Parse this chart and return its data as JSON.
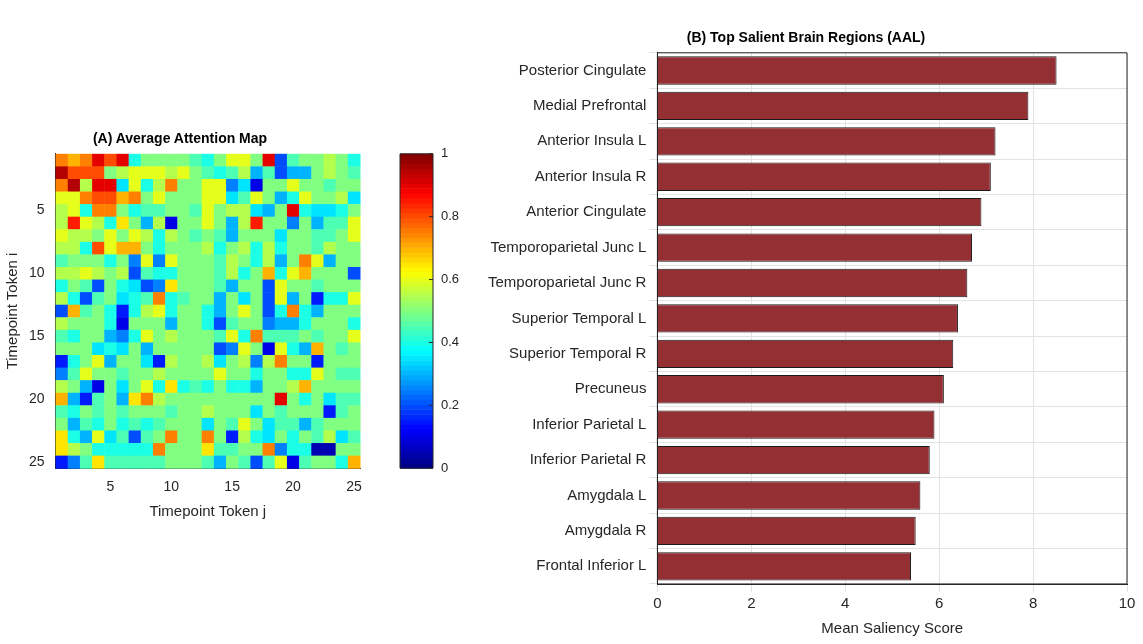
{
  "chart_data": [
    {
      "type": "heatmap",
      "title": "(A) Average Attention Map",
      "xlabel": "Timepoint Token j",
      "ylabel": "Timepoint Token i",
      "categories": [
        null,
        null,
        null,
        null,
        "5",
        null,
        null,
        null,
        null,
        "10",
        null,
        null,
        null,
        null,
        "15",
        null,
        null,
        null,
        null,
        "20",
        null,
        null,
        null,
        null,
        "25"
      ],
      "y_categories": [
        null,
        null,
        null,
        null,
        "5",
        null,
        null,
        null,
        null,
        "10",
        null,
        null,
        null,
        null,
        "15",
        null,
        null,
        null,
        null,
        "20",
        null,
        null,
        null,
        null,
        "25"
      ],
      "clim": [
        0,
        1
      ],
      "cticks": [
        0,
        0.2,
        0.4,
        0.6,
        0.8,
        1
      ],
      "cells": [
        [
          0.75,
          0.7,
          0.75,
          0.9,
          0.8,
          0.9,
          0.4,
          0.5,
          0.5,
          0.5,
          0.5,
          0.45,
          0.4,
          0.5,
          0.6,
          0.6,
          0.5,
          0.9,
          0.2,
          0.45,
          0.5,
          0.5,
          0.55,
          0.5,
          0.4
        ],
        [
          0.95,
          0.8,
          0.8,
          0.8,
          0.5,
          0.55,
          0.6,
          0.6,
          0.6,
          0.55,
          0.6,
          0.5,
          0.45,
          0.4,
          0.45,
          0.55,
          0.3,
          0.45,
          0.2,
          0.3,
          0.3,
          0.5,
          0.55,
          0.5,
          0.45
        ],
        [
          0.75,
          0.95,
          0.55,
          0.9,
          0.9,
          0.35,
          0.6,
          0.4,
          0.55,
          0.75,
          0.5,
          0.5,
          0.6,
          0.6,
          0.25,
          0.35,
          0.1,
          0.5,
          0.5,
          0.6,
          0.5,
          0.5,
          0.45,
          0.5,
          0.5
        ],
        [
          0.6,
          0.6,
          0.75,
          0.8,
          0.8,
          0.7,
          0.75,
          0.5,
          0.6,
          0.5,
          0.5,
          0.5,
          0.6,
          0.6,
          0.35,
          0.45,
          0.6,
          0.5,
          0.3,
          0.4,
          0.6,
          0.5,
          0.5,
          0.55,
          0.35
        ],
        [
          0.55,
          0.6,
          0.4,
          0.75,
          0.75,
          0.5,
          0.4,
          0.45,
          0.45,
          0.5,
          0.5,
          0.45,
          0.6,
          0.5,
          0.55,
          0.55,
          0.35,
          0.3,
          0.5,
          0.9,
          0.4,
          0.35,
          0.35,
          0.4,
          0.5
        ],
        [
          0.55,
          0.85,
          0.6,
          0.55,
          0.4,
          0.65,
          0.5,
          0.3,
          0.55,
          0.1,
          0.5,
          0.5,
          0.6,
          0.5,
          0.3,
          0.55,
          0.85,
          0.5,
          0.5,
          0.25,
          0.5,
          0.3,
          0.45,
          0.45,
          0.6
        ],
        [
          0.6,
          0.55,
          0.55,
          0.5,
          0.6,
          0.5,
          0.6,
          0.55,
          0.4,
          0.55,
          0.5,
          0.45,
          0.5,
          0.45,
          0.3,
          0.5,
          0.5,
          0.5,
          0.35,
          0.5,
          0.5,
          0.45,
          0.45,
          0.5,
          0.6
        ],
        [
          0.55,
          0.55,
          0.4,
          0.8,
          0.6,
          0.7,
          0.7,
          0.5,
          0.4,
          0.5,
          0.5,
          0.5,
          0.55,
          0.4,
          0.5,
          0.55,
          0.4,
          0.55,
          0.4,
          0.5,
          0.5,
          0.45,
          0.55,
          0.5,
          0.5
        ],
        [
          0.45,
          0.5,
          0.5,
          0.5,
          0.4,
          0.5,
          0.25,
          0.6,
          0.25,
          0.6,
          0.5,
          0.5,
          0.5,
          0.45,
          0.55,
          0.5,
          0.4,
          0.55,
          0.3,
          0.5,
          0.75,
          0.6,
          0.3,
          0.5,
          0.5
        ],
        [
          0.55,
          0.55,
          0.6,
          0.55,
          0.5,
          0.55,
          0.2,
          0.45,
          0.4,
          0.4,
          0.5,
          0.5,
          0.5,
          0.45,
          0.55,
          0.4,
          0.5,
          0.7,
          0.4,
          0.6,
          0.7,
          0.5,
          0.5,
          0.5,
          0.2
        ],
        [
          0.4,
          0.5,
          0.45,
          0.2,
          0.5,
          0.4,
          0.35,
          0.2,
          0.25,
          0.65,
          0.5,
          0.5,
          0.5,
          0.45,
          0.3,
          0.5,
          0.5,
          0.2,
          0.6,
          0.5,
          0.5,
          0.45,
          0.5,
          0.5,
          0.5
        ],
        [
          0.55,
          0.4,
          0.2,
          0.45,
          0.5,
          0.35,
          0.4,
          0.45,
          0.75,
          0.4,
          0.45,
          0.5,
          0.5,
          0.3,
          0.5,
          0.35,
          0.5,
          0.2,
          0.6,
          0.3,
          0.5,
          0.15,
          0.4,
          0.4,
          0.6
        ],
        [
          0.2,
          0.7,
          0.45,
          0.5,
          0.4,
          0.15,
          0.4,
          0.55,
          0.6,
          0.4,
          0.5,
          0.5,
          0.4,
          0.3,
          0.5,
          0.6,
          0.5,
          0.2,
          0.4,
          0.75,
          0.4,
          0.3,
          0.5,
          0.5,
          0.5
        ],
        [
          0.55,
          0.5,
          0.5,
          0.5,
          0.4,
          0.1,
          0.5,
          0.5,
          0.5,
          0.3,
          0.5,
          0.5,
          0.4,
          0.2,
          0.45,
          0.5,
          0.5,
          0.25,
          0.3,
          0.3,
          0.4,
          0.5,
          0.5,
          0.5,
          0.4
        ],
        [
          0.45,
          0.4,
          0.5,
          0.5,
          0.3,
          0.25,
          0.4,
          0.6,
          0.5,
          0.55,
          0.5,
          0.5,
          0.5,
          0.45,
          0.6,
          0.4,
          0.75,
          0.45,
          0.45,
          0.45,
          0.5,
          0.45,
          0.5,
          0.5,
          0.6
        ],
        [
          0.5,
          0.5,
          0.5,
          0.35,
          0.4,
          0.35,
          0.5,
          0.3,
          0.5,
          0.5,
          0.5,
          0.5,
          0.5,
          0.2,
          0.25,
          0.6,
          0.5,
          0.1,
          0.6,
          0.4,
          0.3,
          0.7,
          0.5,
          0.45,
          0.5
        ],
        [
          0.15,
          0.4,
          0.5,
          0.6,
          0.3,
          0.5,
          0.5,
          0.35,
          0.15,
          0.55,
          0.5,
          0.5,
          0.55,
          0.35,
          0.5,
          0.55,
          0.25,
          0.55,
          0.75,
          0.5,
          0.5,
          0.15,
          0.5,
          0.5,
          0.5
        ],
        [
          0.25,
          0.45,
          0.6,
          0.5,
          0.5,
          0.45,
          0.5,
          0.5,
          0.55,
          0.5,
          0.5,
          0.5,
          0.5,
          0.6,
          0.5,
          0.5,
          0.4,
          0.5,
          0.5,
          0.4,
          0.4,
          0.6,
          0.5,
          0.45,
          0.45
        ],
        [
          0.55,
          0.5,
          0.3,
          0.1,
          0.5,
          0.35,
          0.5,
          0.6,
          0.4,
          0.65,
          0.4,
          0.45,
          0.4,
          0.5,
          0.4,
          0.4,
          0.3,
          0.5,
          0.5,
          0.55,
          0.7,
          0.5,
          0.5,
          0.5,
          0.5
        ],
        [
          0.7,
          0.3,
          0.15,
          0.45,
          0.5,
          0.3,
          0.65,
          0.75,
          0.55,
          0.5,
          0.5,
          0.5,
          0.5,
          0.5,
          0.5,
          0.5,
          0.5,
          0.5,
          0.9,
          0.5,
          0.4,
          0.5,
          0.35,
          0.45,
          0.45
        ],
        [
          0.45,
          0.4,
          0.5,
          0.45,
          0.5,
          0.45,
          0.5,
          0.5,
          0.5,
          0.45,
          0.5,
          0.5,
          0.55,
          0.5,
          0.5,
          0.5,
          0.35,
          0.5,
          0.45,
          0.5,
          0.5,
          0.5,
          0.15,
          0.45,
          0.5
        ],
        [
          0.5,
          0.3,
          0.45,
          0.4,
          0.5,
          0.4,
          0.45,
          0.4,
          0.45,
          0.5,
          0.5,
          0.5,
          0.35,
          0.5,
          0.45,
          0.6,
          0.5,
          0.35,
          0.45,
          0.45,
          0.3,
          0.45,
          0.5,
          0.5,
          0.5
        ],
        [
          0.65,
          0.4,
          0.3,
          0.6,
          0.35,
          0.45,
          0.2,
          0.45,
          0.5,
          0.75,
          0.5,
          0.5,
          0.75,
          0.5,
          0.15,
          0.55,
          0.4,
          0.35,
          0.5,
          0.4,
          0.5,
          0.45,
          0.55,
          0.35,
          0.45
        ],
        [
          0.65,
          0.55,
          0.5,
          0.4,
          0.4,
          0.4,
          0.4,
          0.4,
          0.75,
          0.5,
          0.5,
          0.5,
          0.65,
          0.45,
          0.45,
          0.5,
          0.5,
          0.75,
          0.25,
          0.4,
          0.4,
          0.05,
          0.05,
          0.5,
          0.5
        ],
        [
          0.15,
          0.25,
          0.45,
          0.65,
          0.45,
          0.45,
          0.45,
          0.45,
          0.45,
          0.5,
          0.5,
          0.5,
          0.45,
          0.3,
          0.5,
          0.45,
          0.2,
          0.45,
          0.6,
          0.1,
          0.45,
          0.5,
          0.5,
          0.4,
          0.7
        ]
      ]
    },
    {
      "type": "bar",
      "orientation": "horizontal",
      "title": "(B) Top Salient Brain Regions (AAL)",
      "xlabel": "Mean Saliency Score",
      "categories": [
        "Posterior Cingulate",
        "Medial Prefrontal",
        "Anterior Insula L",
        "Anterior Insula R",
        "Anterior Cingulate",
        "Temporoparietal Junc L",
        "Temporoparietal Junc R",
        "Superior Temporal L",
        "Superior Temporal R",
        "Precuneus",
        "Inferior Parietal L",
        "Inferior Parietal R",
        "Amygdala L",
        "Amygdala R",
        "Frontal Inferior L"
      ],
      "values": [
        8.5,
        7.9,
        7.2,
        7.1,
        6.9,
        6.7,
        6.6,
        6.4,
        6.3,
        6.1,
        5.9,
        5.8,
        5.6,
        5.5,
        5.4
      ],
      "color": "#943034",
      "xlim": [
        0,
        10
      ],
      "xticks": [
        0,
        2,
        4,
        6,
        8,
        10
      ],
      "grid": true
    }
  ]
}
